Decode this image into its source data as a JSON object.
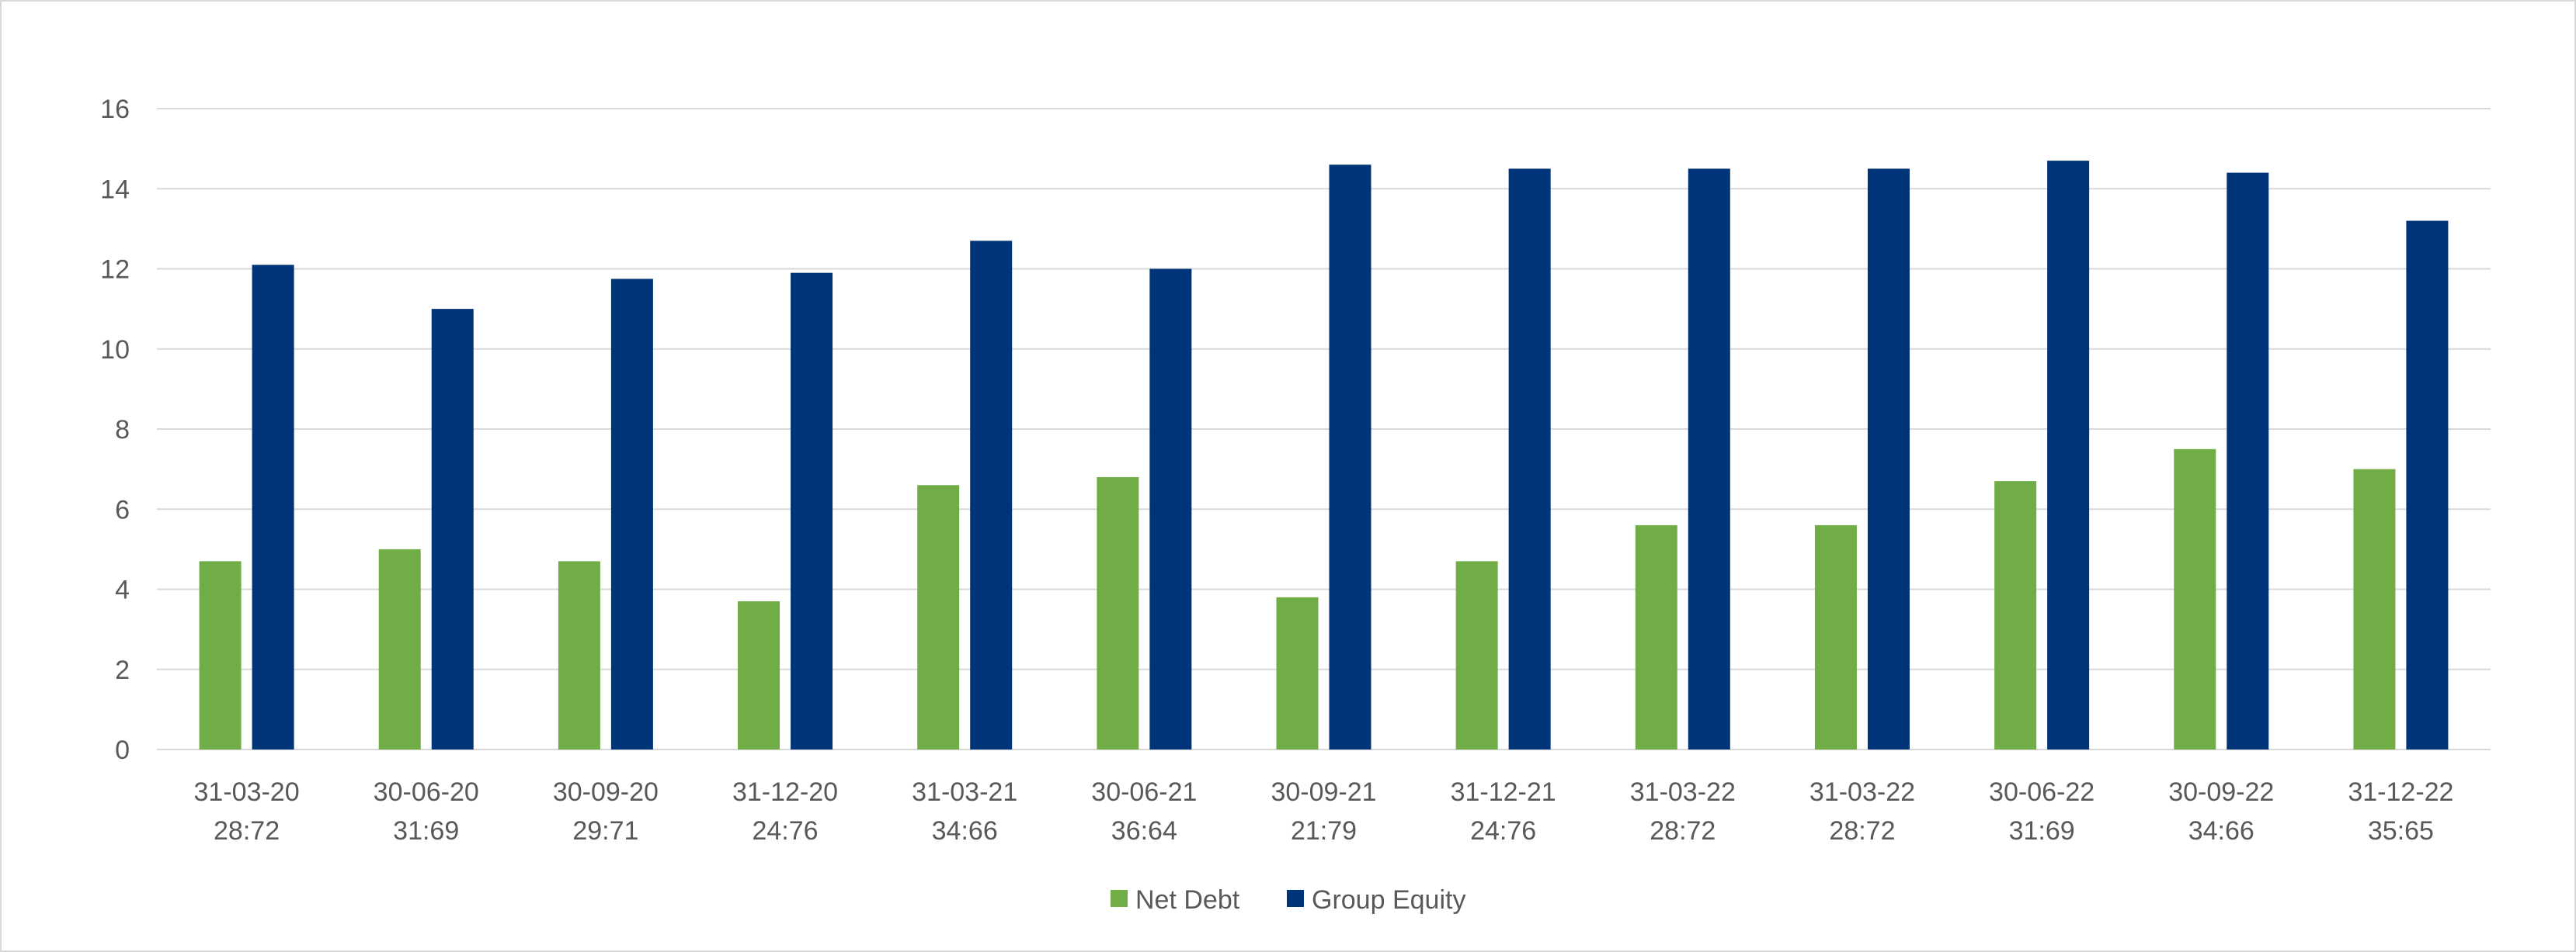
{
  "chart_data": {
    "type": "bar",
    "title": "",
    "xlabel": "",
    "ylabel": "",
    "ylim": [
      0,
      16
    ],
    "yticks": [
      0,
      2,
      4,
      6,
      8,
      10,
      12,
      14,
      16
    ],
    "grid": true,
    "legend_position": "bottom",
    "categories": [
      [
        "31-03-20",
        "28:72"
      ],
      [
        "30-06-20",
        "31:69"
      ],
      [
        "30-09-20",
        "29:71"
      ],
      [
        "31-12-20",
        "24:76"
      ],
      [
        "31-03-21",
        "34:66"
      ],
      [
        "30-06-21",
        "36:64"
      ],
      [
        "30-09-21",
        "21:79"
      ],
      [
        "31-12-21",
        "24:76"
      ],
      [
        "31-03-22",
        "28:72"
      ],
      [
        "31-03-22",
        "28:72"
      ],
      [
        "30-06-22",
        "31:69"
      ],
      [
        "30-09-22",
        "34:66"
      ],
      [
        "31-12-22",
        "35:65"
      ]
    ],
    "series": [
      {
        "name": "Net Debt",
        "color": "#70ad47",
        "values": [
          4.7,
          5.0,
          4.7,
          3.7,
          6.6,
          6.8,
          3.8,
          4.7,
          5.6,
          5.6,
          6.7,
          7.5,
          7.0
        ]
      },
      {
        "name": "Group Equity",
        "color": "#003478",
        "values": [
          12.1,
          11.0,
          11.75,
          11.9,
          12.7,
          12.0,
          14.6,
          14.5,
          14.5,
          14.5,
          14.7,
          14.4,
          13.2
        ]
      }
    ]
  }
}
